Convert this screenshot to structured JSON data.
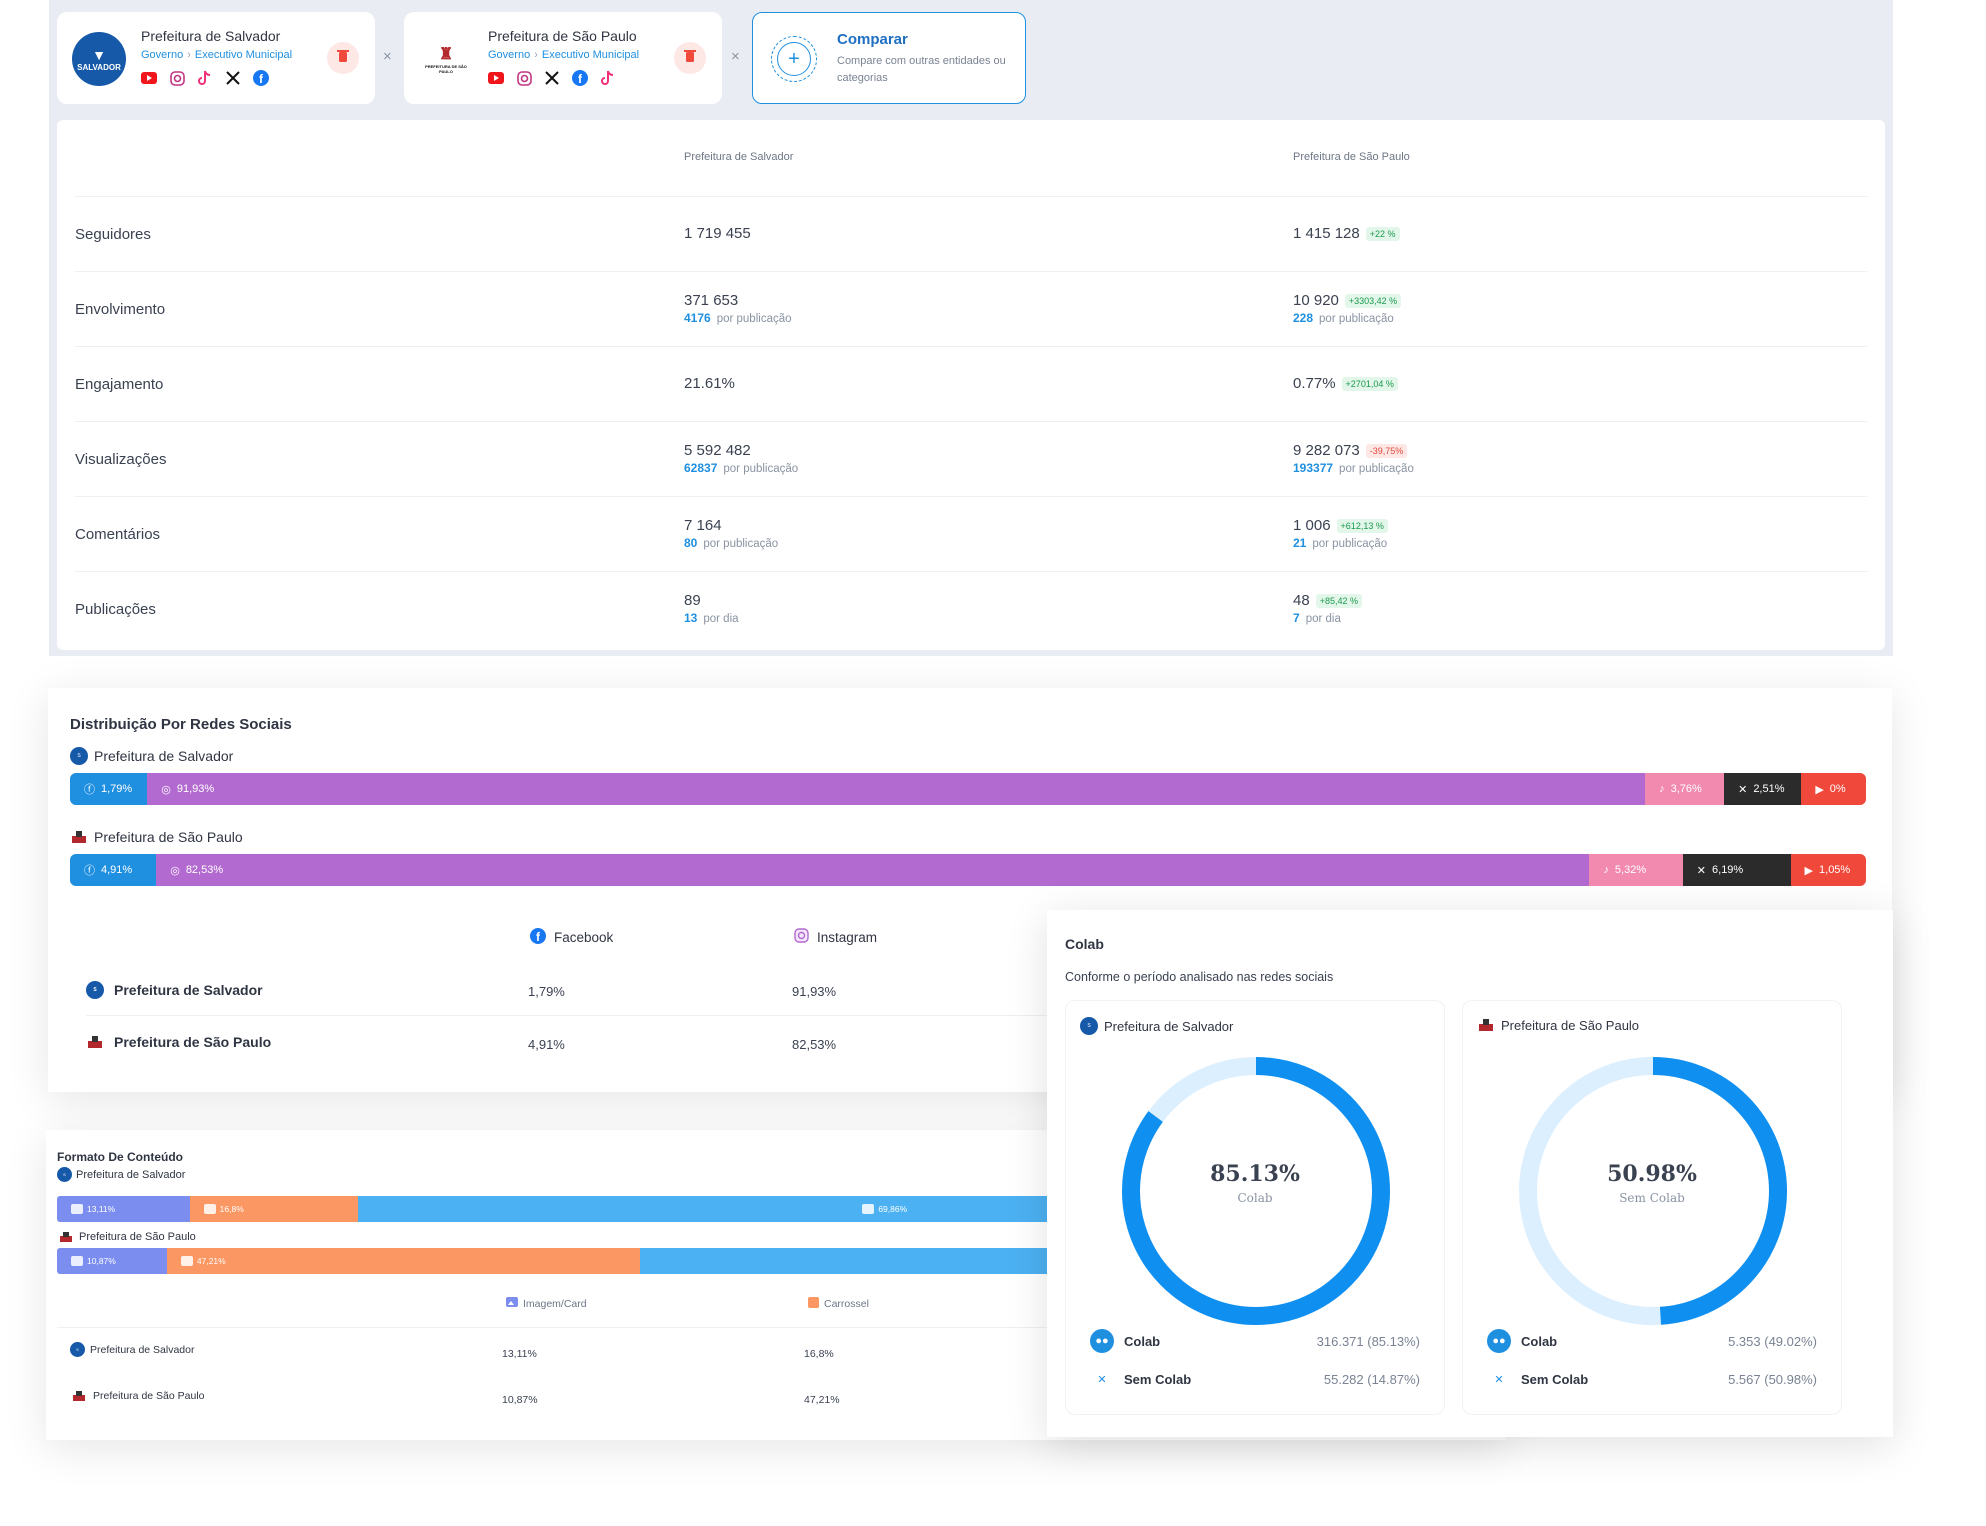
{
  "entities": [
    {
      "name": "Prefeitura de Salvador",
      "logo_text": "SALVADOR",
      "breadcrumb_a": "Governo",
      "breadcrumb_b": "Executivo Municipal",
      "socials": [
        "youtube-icon",
        "instagram-icon",
        "tiktok-icon",
        "x-icon",
        "facebook-icon"
      ]
    },
    {
      "name": "Prefeitura de São Paulo",
      "logo_text": "PREFEITURA DE SÃO PAULO",
      "breadcrumb_a": "Governo",
      "breadcrumb_b": "Executivo Municipal",
      "socials": [
        "youtube-icon",
        "instagram-icon",
        "x-icon",
        "facebook-icon",
        "tiktok-icon"
      ]
    }
  ],
  "separator": "×",
  "compare": {
    "title": "Comparar",
    "description": "Compare com outras entidades ou categorias"
  },
  "metrics": {
    "headers": [
      "Prefeitura de Salvador",
      "Prefeitura de São Paulo"
    ],
    "rows": [
      {
        "label": "Seguidores",
        "a": "1 719 455",
        "a_sub_value": "",
        "a_sub_label": "",
        "b": "1 415 128",
        "badge": "+22 %",
        "badge_type": "pos",
        "b_sub_value": "",
        "b_sub_label": ""
      },
      {
        "label": "Envolvimento",
        "a": "371 653",
        "a_sub_value": "4176",
        "a_sub_label": "por publicação",
        "b": "10 920",
        "badge": "+3303,42 %",
        "badge_type": "pos",
        "b_sub_value": "228",
        "b_sub_label": "por publicação"
      },
      {
        "label": "Engajamento",
        "a": "21.61%",
        "a_sub_value": "",
        "a_sub_label": "",
        "b": "0.77%",
        "badge": "+2701,04 %",
        "badge_type": "pos",
        "b_sub_value": "",
        "b_sub_label": ""
      },
      {
        "label": "Visualizações",
        "a": "5 592 482",
        "a_sub_value": "62837",
        "a_sub_label": "por publicação",
        "b": "9 282 073",
        "badge": "-39,75%",
        "badge_type": "neg",
        "b_sub_value": "193377",
        "b_sub_label": "por publicação"
      },
      {
        "label": "Comentários",
        "a": "7 164",
        "a_sub_value": "80",
        "a_sub_label": "por publicação",
        "b": "1 006",
        "badge": "+612,13 %",
        "badge_type": "pos",
        "b_sub_value": "21",
        "b_sub_label": "por publicação"
      },
      {
        "label": "Publicações",
        "a": "89",
        "a_sub_value": "13",
        "a_sub_label": "por dia",
        "b": "48",
        "badge": "+85,42 %",
        "badge_type": "pos",
        "b_sub_value": "7",
        "b_sub_label": "por dia"
      }
    ]
  },
  "distribution": {
    "title": "Distribuição Por Redes Sociais",
    "bars": [
      {
        "entity": "Prefeitura de Salvador",
        "segments": [
          {
            "name": "Facebook",
            "label": "1,79%",
            "share": 4.3,
            "color": "#1f8fe0",
            "icon": "facebook-icon"
          },
          {
            "name": "Instagram",
            "label": "91,93%",
            "share": 83.4,
            "color": "#b36ad0",
            "icon": "instagram-icon"
          },
          {
            "name": "TikTok",
            "label": "3,76%",
            "share": 4.4,
            "color": "#f28ab0",
            "icon": "tiktok-icon"
          },
          {
            "name": "X",
            "label": "2,51%",
            "share": 4.3,
            "color": "#2b2b2b",
            "icon": "x-icon"
          },
          {
            "name": "YouTube",
            "label": "0%",
            "share": 3.6,
            "color": "#f0483a",
            "icon": "youtube-icon"
          }
        ]
      },
      {
        "entity": "Prefeitura de São Paulo",
        "segments": [
          {
            "name": "Facebook",
            "label": "4,91%",
            "share": 4.8,
            "color": "#1f8fe0",
            "icon": "facebook-icon"
          },
          {
            "name": "Instagram",
            "label": "82,53%",
            "share": 79.8,
            "color": "#b36ad0",
            "icon": "instagram-icon"
          },
          {
            "name": "TikTok",
            "label": "5,32%",
            "share": 5.2,
            "color": "#f28ab0",
            "icon": "tiktok-icon"
          },
          {
            "name": "X",
            "label": "6,19%",
            "share": 6.0,
            "color": "#2b2b2b",
            "icon": "x-icon"
          },
          {
            "name": "YouTube",
            "label": "1,05%",
            "share": 4.2,
            "color": "#f0483a",
            "icon": "youtube-icon"
          }
        ]
      }
    ],
    "table": {
      "columns": [
        "Facebook",
        "Instagram"
      ],
      "rows": [
        {
          "name": "Prefeitura de Salvador",
          "values": [
            "1,79%",
            "91,93%"
          ]
        },
        {
          "name": "Prefeitura de São Paulo",
          "values": [
            "4,91%",
            "82,53%"
          ]
        }
      ]
    }
  },
  "format": {
    "title": "Formato De Conteúdo",
    "bars": [
      {
        "entity": "Prefeitura de Salvador",
        "segments": [
          {
            "label": "13,11%",
            "share": 9.9,
            "color": "#7b8ef0"
          },
          {
            "label": "16,8%",
            "share": 12.6,
            "color": "#fb9763"
          },
          {
            "label": "69,86%",
            "share": 77.5,
            "color": "#4cb1f2"
          }
        ]
      },
      {
        "entity": "Prefeitura de São Paulo",
        "segments": [
          {
            "label": "10,87%",
            "share": 8.2,
            "color": "#7b8ef0"
          },
          {
            "label": "47,21%",
            "share": 35.3,
            "color": "#fb9763"
          },
          {
            "label": "",
            "share": 56.5,
            "color": "#4cb1f2"
          }
        ]
      }
    ],
    "table": {
      "columns": [
        "Imagem/Card",
        "Carrossel"
      ],
      "rows": [
        {
          "name": "Prefeitura de Salvador",
          "values": [
            "13,11%",
            "16,8%"
          ]
        },
        {
          "name": "Prefeitura de São Paulo",
          "values": [
            "10,87%",
            "47,21%"
          ]
        }
      ]
    }
  },
  "colab": {
    "title": "Colab",
    "subtitle": "Conforme o período analisado nas redes sociais",
    "cards": [
      {
        "entity": "Prefeitura de Salvador",
        "center_pct": "85.13%",
        "center_label": "Colab",
        "fraction": 0.8513,
        "colab_label": "Colab",
        "colab_value": "316.371 (85.13%)",
        "sem_label": "Sem Colab",
        "sem_value": "55.282 (14.87%)"
      },
      {
        "entity": "Prefeitura de São Paulo",
        "center_pct": "50.98%",
        "center_label": "Sem Colab",
        "fraction": 0.4902,
        "colab_label": "Colab",
        "colab_value": "5.353 (49.02%)",
        "sem_label": "Sem Colab",
        "sem_value": "5.567 (50.98%)"
      }
    ],
    "colors": {
      "filled": "#0f8ff0",
      "track": "#dcefff"
    }
  }
}
